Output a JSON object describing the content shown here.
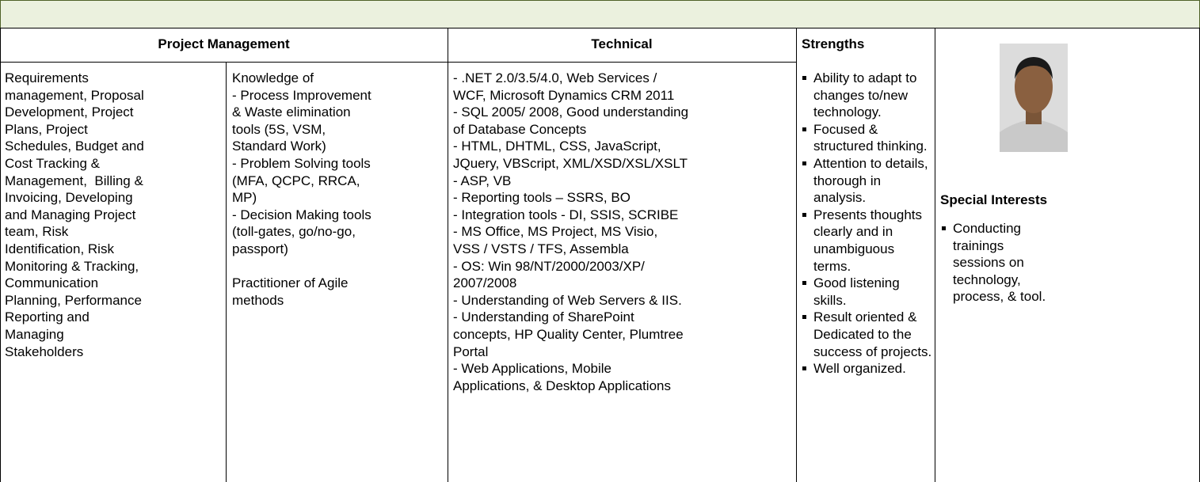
{
  "header": {
    "project_management": "Project Management",
    "technical": "Technical",
    "strengths": "Strengths",
    "special_interests": "Special Interests"
  },
  "project_management": {
    "column_1": [
      "Requirements",
      "management, Proposal",
      "Development, Project",
      "Plans, Project",
      "Schedules, Budget and",
      "Cost Tracking &",
      "Management,  Billing &",
      "Invoicing, Developing",
      "and Managing Project",
      "team, Risk",
      "Identification, Risk",
      "Monitoring & Tracking,",
      "Communication",
      "Planning, Performance",
      "Reporting and",
      "Managing",
      "Stakeholders"
    ],
    "column_2": [
      [
        "Knowledge of",
        "- Process Improvement",
        "& Waste elimination",
        "tools (5S, VSM,",
        "Standard Work)",
        "- Problem Solving tools",
        "(MFA, QCPC, RRCA,",
        "MP)",
        "- Decision Making tools",
        "(toll-gates, go/no-go,",
        "passport)"
      ],
      [
        "Practitioner of Agile",
        "methods"
      ]
    ]
  },
  "technical": [
    "- .NET 2.0/3.5/4.0, Web Services /",
    "WCF, Microsoft Dynamics CRM 2011",
    "- SQL 2005/ 2008, Good understanding",
    "of Database Concepts",
    "- HTML, DHTML, CSS, JavaScript,",
    "JQuery, VBScript, XML/XSD/XSL/XSLT",
    "- ASP, VB",
    "- Reporting tools – SSRS, BO",
    "- Integration tools - DI, SSIS, SCRIBE",
    "- MS Office, MS Project, MS Visio,",
    "VSS / VSTS / TFS, Assembla",
    "- OS: Win 98/NT/2000/2003/XP/",
    "2007/2008",
    "- Understanding of Web Servers & IIS.",
    "- Understanding of SharePoint",
    "concepts, HP Quality Center, Plumtree",
    "Portal",
    "- Web Applications, Mobile",
    "Applications, & Desktop Applications"
  ],
  "strengths": [
    [
      "Ability to adapt to",
      "changes to/new",
      "technology."
    ],
    [
      "Focused &",
      "structured thinking."
    ],
    [
      "Attention to details,",
      "thorough in",
      "analysis."
    ],
    [
      "Presents thoughts",
      "clearly and in",
      "unambiguous",
      "terms."
    ],
    [
      "Good listening",
      "skills."
    ],
    [
      "Result oriented &",
      "Dedicated to the",
      "success of projects."
    ],
    [
      "Well organized."
    ]
  ],
  "special_interests": [
    [
      "Conducting",
      "trainings",
      "sessions on",
      "technology,",
      "process, & tool."
    ]
  ]
}
